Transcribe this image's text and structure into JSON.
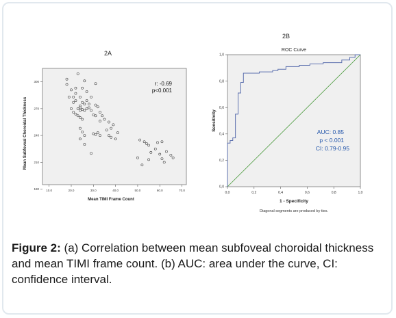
{
  "figure": {
    "caption_label": "Figure 2:",
    "caption_text": "(a) Correlation between mean subfoveal choroidal thickness and mean TIMI frame count. (b) AUC: area under the curve, CI: confidence interval."
  },
  "colors": {
    "plot_bg_a": "#f0f0f0",
    "plot_bg_b": "#f0f0f0",
    "roc_line": "#5b6fae",
    "diagonal": "#4a9a3c",
    "stats_text": "#2255aa",
    "frame_border": "#e1e8ee"
  },
  "chart_data": [
    {
      "type": "scatter",
      "panel_label": "2A",
      "title": "",
      "xlabel": "Mean TIMI Frame Count",
      "ylabel": "Mean Subfoveal Choroidal Thickness",
      "xlim": [
        7,
        72
      ],
      "ylim": [
        185,
        315
      ],
      "xticks": [
        "10.0",
        "20.0",
        "30.0",
        "40.0",
        "50.0",
        "60.0",
        "70.0"
      ],
      "xtick_values": [
        10,
        20,
        30,
        40,
        50,
        60,
        70
      ],
      "yticks": [
        "180",
        "210",
        "240",
        "270",
        "300"
      ],
      "ytick_values": [
        180,
        210,
        240,
        270,
        300
      ],
      "annotations": [
        "r: -0.69",
        "p<0.001"
      ],
      "grid": false,
      "marker": "open-circle",
      "points": [
        [
          18,
          303
        ],
        [
          18,
          297
        ],
        [
          20,
          291
        ],
        [
          21,
          283
        ],
        [
          22,
          287
        ],
        [
          22,
          293
        ],
        [
          23,
          309
        ],
        [
          24,
          283
        ],
        [
          25,
          293
        ],
        [
          26,
          301
        ],
        [
          27,
          289
        ],
        [
          19,
          283
        ],
        [
          21,
          277
        ],
        [
          22,
          279
        ],
        [
          24,
          273
        ],
        [
          25,
          277
        ],
        [
          26,
          275
        ],
        [
          27,
          279
        ],
        [
          28,
          275
        ],
        [
          24,
          271
        ],
        [
          25,
          269
        ],
        [
          26,
          268
        ],
        [
          27,
          270
        ],
        [
          28,
          271
        ],
        [
          23,
          270
        ],
        [
          24,
          268
        ],
        [
          29,
          283
        ],
        [
          31,
          298
        ],
        [
          20,
          270
        ],
        [
          21,
          266
        ],
        [
          22,
          264
        ],
        [
          23,
          262
        ],
        [
          24,
          260
        ],
        [
          25,
          258
        ],
        [
          29,
          268
        ],
        [
          31,
          274
        ],
        [
          32,
          272
        ],
        [
          33,
          266
        ],
        [
          34,
          262
        ],
        [
          30,
          263
        ],
        [
          31,
          262
        ],
        [
          33,
          256
        ],
        [
          35,
          258
        ],
        [
          37,
          255
        ],
        [
          24,
          248
        ],
        [
          25,
          244
        ],
        [
          26,
          240
        ],
        [
          24,
          236
        ],
        [
          26,
          230
        ],
        [
          30,
          242
        ],
        [
          32,
          243
        ],
        [
          31,
          241
        ],
        [
          33,
          240
        ],
        [
          36,
          246
        ],
        [
          37,
          240
        ],
        [
          38,
          248
        ],
        [
          39,
          252
        ],
        [
          38,
          238
        ],
        [
          40,
          236
        ],
        [
          41,
          243
        ],
        [
          29,
          220
        ],
        [
          51,
          235
        ],
        [
          53,
          233
        ],
        [
          54,
          231
        ],
        [
          55,
          229
        ],
        [
          59,
          232
        ],
        [
          61,
          233
        ],
        [
          58,
          225
        ],
        [
          56,
          221
        ],
        [
          60,
          219
        ],
        [
          61,
          214
        ],
        [
          63,
          222
        ],
        [
          62,
          210
        ],
        [
          50,
          215
        ],
        [
          52,
          207
        ],
        [
          55,
          213
        ],
        [
          65,
          218
        ],
        [
          66,
          215
        ]
      ]
    },
    {
      "type": "line",
      "panel_label": "2B",
      "title": "ROC Curve",
      "xlabel": "1 - Specificity",
      "ylabel": "Sensitivity",
      "xlim": [
        0,
        1
      ],
      "ylim": [
        0,
        1
      ],
      "xticks": [
        "0,0",
        "0,2",
        "0,4",
        "0,6",
        "0,8",
        "1,0"
      ],
      "xtick_values": [
        0,
        0.2,
        0.4,
        0.6,
        0.8,
        1.0
      ],
      "yticks": [
        "0,0",
        "0,2",
        "0,4",
        "0,6",
        "0,8",
        "1,0"
      ],
      "ytick_values": [
        0,
        0.2,
        0.4,
        0.6,
        0.8,
        1.0
      ],
      "annotations": [
        "AUC: 0.85",
        "p < 0.001",
        "CI: 0.79-0.95"
      ],
      "footnote": "Diagonal segments are produced by ties.",
      "grid": false,
      "series": [
        {
          "x": [
            0,
            0,
            0.02,
            0.02,
            0.04,
            0.04,
            0.06,
            0.06,
            0.08,
            0.08,
            0.1,
            0.1,
            0.12,
            0.12,
            0.24,
            0.24,
            0.34,
            0.34,
            0.38,
            0.38,
            0.44,
            0.44,
            0.54,
            0.54,
            0.62,
            0.62,
            0.72,
            0.72,
            0.86,
            0.86,
            0.92,
            0.92,
            0.96,
            0.96,
            1.0
          ],
          "y": [
            0,
            0.33,
            0.33,
            0.35,
            0.35,
            0.37,
            0.37,
            0.55,
            0.55,
            0.71,
            0.71,
            0.79,
            0.79,
            0.86,
            0.86,
            0.87,
            0.87,
            0.88,
            0.88,
            0.89,
            0.89,
            0.91,
            0.91,
            0.92,
            0.92,
            0.93,
            0.93,
            0.94,
            0.94,
            0.96,
            0.96,
            0.98,
            0.98,
            1.0,
            1.0
          ]
        },
        {
          "x": [
            0,
            1
          ],
          "y": [
            0,
            1
          ]
        }
      ]
    }
  ]
}
